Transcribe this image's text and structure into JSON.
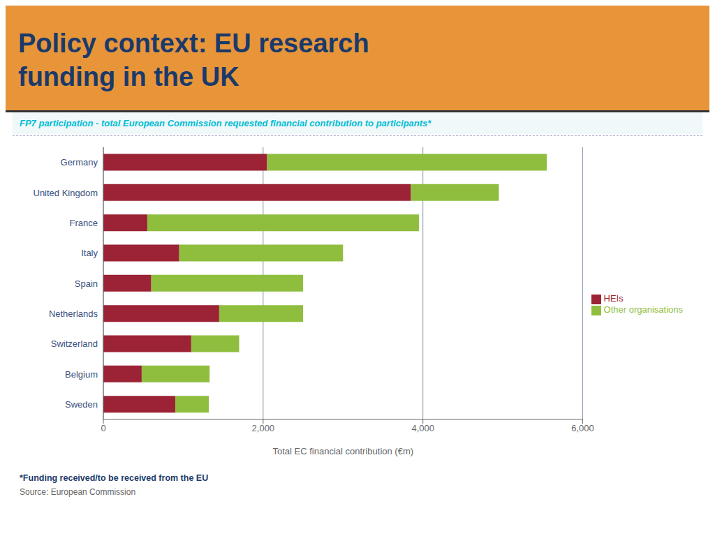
{
  "chart_data": {
    "type": "bar",
    "orientation": "horizontal",
    "stacked": true,
    "title": "Policy context: EU research\nfunding in the UK",
    "subtitle": "FP7 participation - total European Commission requested financial contribution to participants*",
    "x_label": "Total EC financial contribution (€m)",
    "categories": [
      "Germany",
      "United Kingdom",
      "France",
      "Italy",
      "Spain",
      "Netherlands",
      "Switzerland",
      "Belgium",
      "Sweden"
    ],
    "series": [
      {
        "name": "HEIs",
        "color": "#9b2335",
        "values": [
          2050,
          3850,
          550,
          950,
          600,
          1450,
          1100,
          480,
          900
        ]
      },
      {
        "name": "Other organisations",
        "color": "#8fbe3f",
        "values": [
          3500,
          1100,
          3400,
          2050,
          1900,
          1050,
          600,
          850,
          420
        ]
      }
    ],
    "xlim": [
      0,
      6000
    ],
    "xticks": [
      0,
      {
        "value": 2000,
        "label": "2,000"
      },
      {
        "value": 4000,
        "label": "4,000"
      },
      {
        "value": 6000,
        "label": "6,000"
      }
    ],
    "grid": true,
    "legend": "right",
    "annotations": [
      "*Funding received/to be received from the EU",
      "Source: European Commission"
    ]
  }
}
